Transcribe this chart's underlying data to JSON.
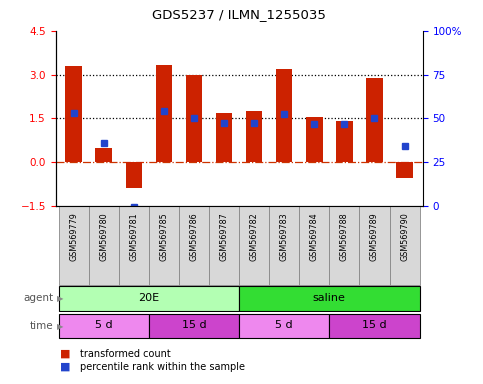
{
  "title": "GDS5237 / ILMN_1255035",
  "samples": [
    "GSM569779",
    "GSM569780",
    "GSM569781",
    "GSM569785",
    "GSM569786",
    "GSM569787",
    "GSM569782",
    "GSM569783",
    "GSM569784",
    "GSM569788",
    "GSM569789",
    "GSM569790"
  ],
  "red_values": [
    3.3,
    0.5,
    -0.9,
    3.35,
    3.0,
    1.7,
    1.75,
    3.2,
    1.55,
    1.4,
    2.9,
    -0.55
  ],
  "blue_values": [
    1.7,
    0.65,
    -1.55,
    1.75,
    1.5,
    1.35,
    1.35,
    1.65,
    1.3,
    1.3,
    1.5,
    0.55
  ],
  "ylim_left": [
    -1.5,
    4.5
  ],
  "ylim_right": [
    0,
    100
  ],
  "yticks_left": [
    -1.5,
    0,
    1.5,
    3,
    4.5
  ],
  "yticks_right": [
    0,
    25,
    50,
    75,
    100
  ],
  "ytick_right_labels": [
    "0",
    "25",
    "50",
    "75",
    "100%"
  ],
  "hlines": [
    {
      "y": 0.0,
      "color": "#cc3300",
      "ls": "dashdot",
      "lw": 0.9
    },
    {
      "y": 1.5,
      "color": "black",
      "ls": "dotted",
      "lw": 0.9
    },
    {
      "y": 3.0,
      "color": "black",
      "ls": "dotted",
      "lw": 0.9
    }
  ],
  "agent_groups": [
    {
      "label": "20E",
      "start": 0,
      "end": 6,
      "color": "#b3ffb3"
    },
    {
      "label": "saline",
      "start": 6,
      "end": 12,
      "color": "#33dd33"
    }
  ],
  "time_groups": [
    {
      "label": "5 d",
      "start": 0,
      "end": 3,
      "color": "#ee88ee"
    },
    {
      "label": "15 d",
      "start": 3,
      "end": 6,
      "color": "#cc44cc"
    },
    {
      "label": "5 d",
      "start": 6,
      "end": 9,
      "color": "#ee88ee"
    },
    {
      "label": "15 d",
      "start": 9,
      "end": 12,
      "color": "#cc44cc"
    }
  ],
  "legend_red": "transformed count",
  "legend_blue": "percentile rank within the sample",
  "bar_color": "#cc2200",
  "blue_color": "#2244cc",
  "bar_width": 0.55,
  "label_bg": "#d8d8d8"
}
